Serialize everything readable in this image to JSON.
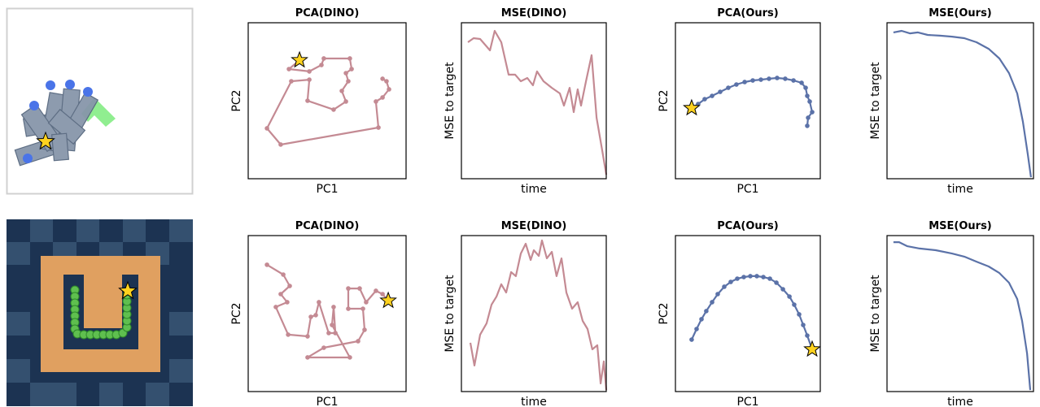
{
  "chart_data": [
    {
      "type": "line",
      "title": "PCA(DINO)",
      "x_label": "PC1",
      "y_label": "PC2",
      "color": "#c48a93",
      "markers": true,
      "star_at": "first",
      "xlim": [
        0,
        100
      ],
      "ylim": [
        0,
        100
      ],
      "x": [
        32.5,
        25.8,
        38.7,
        46.4,
        47.9,
        64.4,
        65.5,
        61.9,
        63.4,
        59.3,
        61.9,
        54.1,
        37.6,
        38.7,
        27.3,
        11.9,
        20.6,
        82.5,
        80.9,
        85.1,
        89.2,
        87.6,
        85.1
      ],
      "values": [
        76,
        70.3,
        68.8,
        72.9,
        77.1,
        77.1,
        70.3,
        67.7,
        62.5,
        56.3,
        49.5,
        44.3,
        50,
        63.5,
        62.5,
        32.3,
        21.9,
        32.8,
        49.5,
        52.1,
        57.3,
        62.5,
        64.1
      ]
    },
    {
      "type": "line",
      "title": "MSE(DINO)",
      "x_label": "time",
      "y_label": "MSE to target",
      "color": "#c48a93",
      "markers": false,
      "xlim": [
        0,
        100
      ],
      "ylim": [
        0,
        100
      ],
      "x": [
        4.5,
        8.4,
        12.9,
        19.7,
        23,
        27.5,
        32.6,
        37.1,
        41,
        45.5,
        49.4,
        52.2,
        56.7,
        62.4,
        68,
        70.8,
        74.7,
        77.5,
        80.3,
        82.6,
        86,
        89.9,
        93.3,
        97.2,
        100
      ],
      "values": [
        87.5,
        90.1,
        89.6,
        82.3,
        94.8,
        87.5,
        66.7,
        66.7,
        62.5,
        64.6,
        59.9,
        68.8,
        62.5,
        58.3,
        54.7,
        46.9,
        58.3,
        42.7,
        57.3,
        46.9,
        62.5,
        79.2,
        39.1,
        18.2,
        2.6
      ]
    },
    {
      "type": "line",
      "title": "PCA(Ours)",
      "x_label": "PC1",
      "y_label": "PC2",
      "color": "#5b72a8",
      "markers": true,
      "star_at": "first",
      "xlim": [
        0,
        100
      ],
      "ylim": [
        0,
        100
      ],
      "x": [
        11.2,
        15.7,
        20.2,
        25.3,
        30.9,
        36.5,
        42.1,
        47.8,
        53.4,
        59,
        64.6,
        70.2,
        75.8,
        81.5,
        87.1,
        89.9,
        91,
        92.7,
        94.4,
        91.6,
        91
      ],
      "values": [
        45.3,
        47.9,
        51,
        53.1,
        55.7,
        58.3,
        60.4,
        62,
        63,
        63.5,
        64.1,
        64.6,
        64.1,
        63,
        61.5,
        58.3,
        53.1,
        49.5,
        42.7,
        39.1,
        33.9
      ]
    },
    {
      "type": "line",
      "title": "MSE(Ours)",
      "x_label": "time",
      "y_label": "MSE to target",
      "color": "#5b72a8",
      "markers": false,
      "xlim": [
        0,
        100
      ],
      "ylim": [
        0,
        100
      ],
      "x": [
        4.4,
        10,
        15.6,
        21.1,
        27.8,
        36.1,
        44.4,
        52.8,
        61.1,
        69.4,
        76.7,
        83.3,
        88.9,
        92.8,
        96.1,
        98.3
      ],
      "values": [
        93.8,
        94.8,
        93.2,
        93.8,
        92.2,
        91.7,
        91.1,
        90.1,
        87.5,
        83.3,
        77.1,
        67.7,
        54.7,
        36.5,
        15.6,
        1
      ]
    },
    {
      "type": "line",
      "title": "PCA(DINO)",
      "x_label": "PC1",
      "y_label": "PC2",
      "color": "#c48a93",
      "markers": true,
      "star_at": "last",
      "xlim": [
        0,
        100
      ],
      "ylim": [
        0,
        100
      ],
      "x": [
        11.9,
        22.2,
        26.3,
        20.6,
        24.7,
        17.5,
        25.3,
        37.6,
        39.7,
        42.8,
        44.8,
        51,
        55.2,
        54.1,
        53.1,
        64.4,
        37.6,
        47.9,
        69.6,
        73.7,
        72.7,
        63.4,
        63.4,
        70.6,
        74.7,
        80.9,
        85.1,
        88.7
      ],
      "values": [
        81.3,
        75,
        67.7,
        62.5,
        57.3,
        54.2,
        36.5,
        35.4,
        47.9,
        49,
        57.3,
        37.5,
        37.5,
        54.2,
        42.7,
        21.9,
        21.9,
        28.1,
        32.3,
        39.6,
        53.1,
        53.1,
        66.1,
        66.1,
        57.3,
        64.6,
        62.5,
        58.3
      ]
    },
    {
      "type": "line",
      "title": "MSE(DINO)",
      "x_label": "time",
      "y_label": "MSE to target",
      "color": "#c48a93",
      "markers": false,
      "xlim": [
        0,
        100
      ],
      "ylim": [
        0,
        100
      ],
      "x": [
        6.2,
        9,
        12.9,
        17.4,
        20.8,
        24.2,
        27.5,
        30.9,
        34.3,
        37.6,
        41,
        44.4,
        47.8,
        50,
        53.4,
        55.6,
        59,
        62.4,
        65.7,
        69.1,
        72.5,
        76.4,
        80.3,
        83.7,
        87.1,
        90.4,
        93.8,
        96.1,
        98.3,
        100
      ],
      "values": [
        31.3,
        16.7,
        36.5,
        43.8,
        55.7,
        60.9,
        68.8,
        63.5,
        76.6,
        74,
        88.5,
        94.8,
        84.4,
        90.6,
        87,
        96.9,
        85.4,
        89.6,
        74,
        85.4,
        63.5,
        53.1,
        57.3,
        45.3,
        40.1,
        27.1,
        29.7,
        5.2,
        19.3,
        1
      ]
    },
    {
      "type": "line",
      "title": "PCA(Ours)",
      "x_label": "PC1",
      "y_label": "PC2",
      "color": "#5b72a8",
      "markers": true,
      "star_at": "last",
      "xlim": [
        0,
        100
      ],
      "ylim": [
        0,
        100
      ],
      "x": [
        11.2,
        14.6,
        18,
        21.3,
        25.3,
        29.2,
        33.7,
        38.2,
        42.7,
        47.2,
        51.7,
        56.2,
        60.7,
        65.2,
        69.7,
        74.2,
        78.7,
        82,
        85.4,
        88.2,
        91,
        94.4
      ],
      "values": [
        33.3,
        40.1,
        46.4,
        51.6,
        57.3,
        62.5,
        67.2,
        70.3,
        72.4,
        73.4,
        74,
        74,
        73.4,
        72.4,
        69.8,
        65.6,
        60.9,
        55.7,
        49.5,
        42.7,
        35.9,
        27.1
      ]
    },
    {
      "type": "line",
      "title": "MSE(Ours)",
      "x_label": "time",
      "y_label": "MSE to target",
      "color": "#5b72a8",
      "markers": false,
      "xlim": [
        0,
        100
      ],
      "ylim": [
        0,
        100
      ],
      "x": [
        4.4,
        8.3,
        13.9,
        22.2,
        33.3,
        44.4,
        52.8,
        61.1,
        69.4,
        76.7,
        83.3,
        88.9,
        92.2,
        95.6,
        97.8
      ],
      "values": [
        95.8,
        95.8,
        93.2,
        91.7,
        90.6,
        88.5,
        86.5,
        83.3,
        80.2,
        76,
        69.8,
        59.4,
        45.3,
        24.5,
        1
      ]
    }
  ]
}
